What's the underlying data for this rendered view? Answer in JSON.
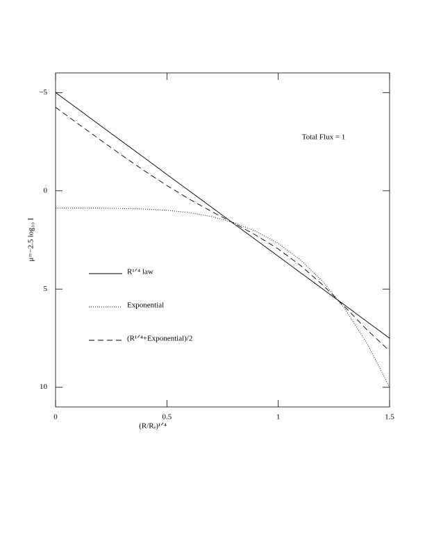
{
  "chart_data": {
    "type": "line",
    "xlabel": "(R/Rₑ)¹ᐟ⁴",
    "ylabel": "μ=−2.5 log₁₀ I",
    "annotation": "Total Flux = 1",
    "x": [
      0,
      0.1,
      0.2,
      0.3,
      0.4,
      0.5,
      0.6,
      0.7,
      0.8,
      0.9,
      1.0,
      1.1,
      1.2,
      1.3,
      1.4,
      1.5
    ],
    "series": [
      {
        "name": "R¹ᐟ⁴ law",
        "color": "#000000",
        "style": "solid",
        "values": [
          -5,
          -4.17,
          -3.33,
          -2.5,
          -1.67,
          -0.83,
          0,
          0.83,
          1.67,
          2.5,
          3.33,
          4.17,
          5,
          5.83,
          6.67,
          7.5
        ]
      },
      {
        "name": "Exponential",
        "color": "#000000",
        "style": "dotted",
        "values": [
          0.88,
          0.88,
          0.88,
          0.9,
          0.93,
          0.99,
          1.11,
          1.31,
          1.62,
          2.06,
          2.68,
          3.52,
          4.61,
          6.02,
          7.79,
          10
        ]
      },
      {
        "name": "(R¹ᐟ⁴+Exponential)/2",
        "color": "#000000",
        "style": "dashed",
        "values": [
          -4.25,
          -3.42,
          -2.6,
          -1.79,
          -1.01,
          -0.27,
          0.42,
          1.05,
          1.64,
          2.26,
          2.96,
          3.8,
          4.79,
          5.92,
          7.09,
          8.15
        ]
      }
    ],
    "xlim": [
      0,
      1.5
    ],
    "xticks": [
      0,
      0.5,
      1,
      1.5
    ],
    "ylim": [
      11,
      -6
    ],
    "yticks": [
      {
        "value": -5,
        "label": "−5"
      },
      0,
      5,
      10
    ],
    "legend": "lower left",
    "grid": false
  }
}
